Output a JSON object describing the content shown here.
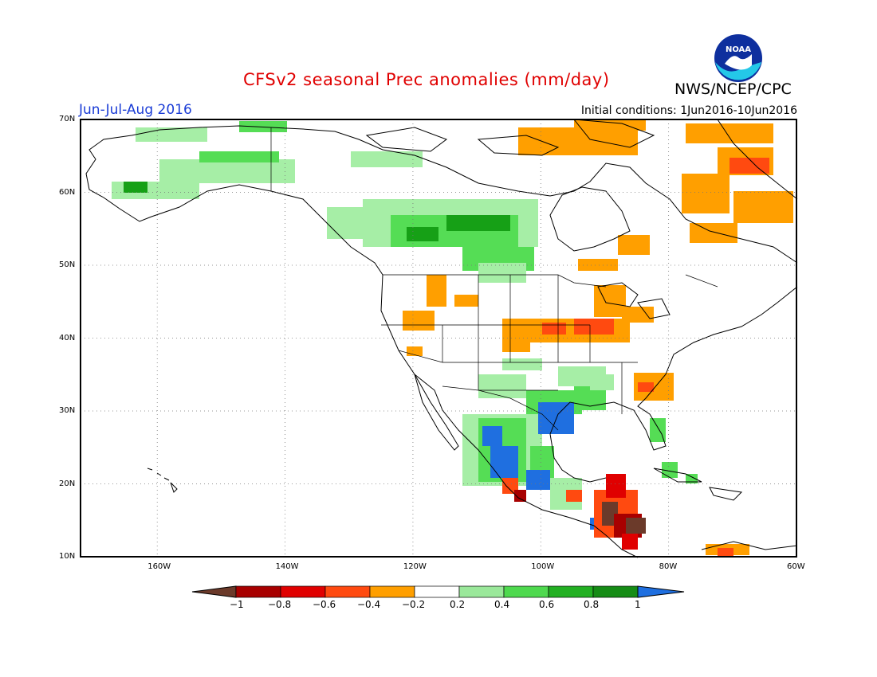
{
  "header": {
    "title": "CFSv2 seasonal Prec anomalies (mm/day)",
    "agency": "NWS/NCEP/CPC",
    "period": "Jun-Jul-Aug 2016",
    "initial_conditions": "Initial conditions: 1Jun2016-10Jun2016",
    "logo_text": "NOAA"
  },
  "map": {
    "lat_labels": [
      "70N",
      "60N",
      "50N",
      "40N",
      "30N",
      "20N",
      "10N"
    ],
    "lon_labels": [
      "160W",
      "140W",
      "120W",
      "100W",
      "80W",
      "60W"
    ],
    "lat_range": [
      10,
      70
    ],
    "lon_range": [
      -172,
      -60
    ],
    "grid": true
  },
  "colorbar": {
    "labels": [
      "-1",
      "-0.8",
      "-0.6",
      "-0.4",
      "-0.2",
      "0.2",
      "0.4",
      "0.6",
      "0.8",
      "1"
    ],
    "colors": [
      "#6b3a2a",
      "#a80000",
      "#e00000",
      "#ff4a10",
      "#ff9f00",
      "#ffffff",
      "#9ae89a",
      "#4ed94e",
      "#22b022",
      "#158c15",
      "#1f6fe0"
    ]
  },
  "anomaly_colors": {
    "dark_green": "#16a016",
    "green": "#55dd55",
    "light_green": "#a6eea6",
    "orange": "#ff9f00",
    "red_orange": "#ff4a10",
    "red": "#e00000",
    "dark_red": "#a80000",
    "brown": "#6b3a2a",
    "blue": "#1f6fe0"
  }
}
